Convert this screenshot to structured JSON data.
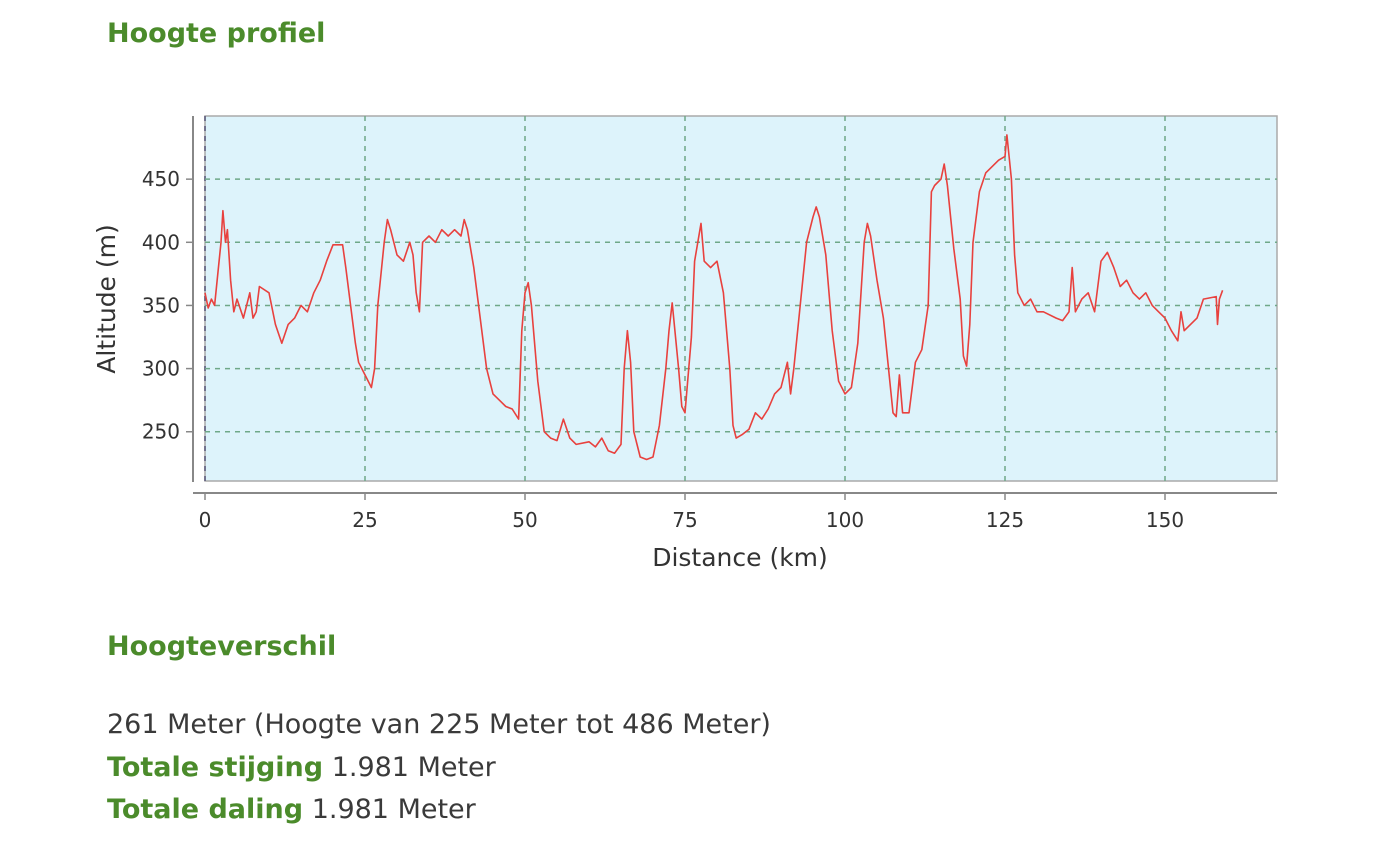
{
  "section_title": "Hoogte profiel",
  "summary_title": "Hoogteverschil",
  "summary": {
    "range_text": "261 Meter (Hoogte van 225 Meter tot 486 Meter)",
    "ascent_label": "Totale stijging",
    "ascent_value": "1.981 Meter",
    "descent_label": "Totale daling",
    "descent_value": "1.981 Meter"
  },
  "chart_data": {
    "type": "line",
    "title": "",
    "xlabel": "Distance (km)",
    "ylabel": "Altitude (m)",
    "xlim": [
      0,
      167.5
    ],
    "ylim": [
      211,
      500
    ],
    "xticks": [
      0,
      25,
      50,
      75,
      100,
      125,
      150
    ],
    "yticks": [
      250,
      300,
      350,
      400,
      450
    ],
    "grid": true,
    "colors": {
      "line": "#e8413e",
      "plot_bg": "#ddf3fb",
      "grid": "#6fa888"
    },
    "x": [
      0,
      0.5,
      1,
      1.5,
      2.5,
      2.8,
      3.2,
      3.5,
      4,
      4.5,
      5,
      6,
      7,
      7.5,
      8,
      8.5,
      10,
      11,
      12,
      13,
      14,
      15,
      16,
      17,
      18,
      19,
      20,
      21.5,
      22,
      23,
      23.5,
      24,
      25,
      26,
      26.5,
      27,
      28,
      28.5,
      29,
      30,
      31,
      32,
      32.5,
      33,
      33.5,
      34,
      35,
      36,
      37,
      38,
      39,
      40,
      40.5,
      41,
      42,
      43,
      44,
      45,
      46,
      47,
      48,
      49,
      49.5,
      50,
      50.5,
      51,
      52,
      53,
      54,
      55,
      56,
      57,
      58,
      60,
      61,
      62,
      63,
      64,
      65,
      65.5,
      66,
      66.5,
      67,
      68,
      69,
      70,
      71,
      72,
      72.5,
      73,
      74,
      74.5,
      75,
      76,
      76.5,
      77.5,
      78,
      79,
      80,
      81,
      82,
      82.5,
      83,
      84,
      85,
      86,
      87,
      88,
      89,
      90,
      91,
      91.5,
      92,
      93,
      94,
      95,
      95.5,
      96,
      97,
      98,
      99,
      100,
      101,
      102,
      103,
      103.5,
      104,
      105,
      106,
      107,
      107.5,
      108,
      108.5,
      109,
      110,
      111,
      112,
      113,
      113.5,
      114,
      115,
      115.5,
      116,
      117,
      118,
      118.5,
      119,
      119.5,
      120,
      121,
      122,
      124,
      125,
      125.3,
      126,
      126.5,
      127,
      128,
      129,
      130,
      131,
      133,
      134,
      135,
      135.5,
      136,
      137,
      138,
      139,
      140,
      141,
      142,
      143,
      144,
      145,
      146,
      147,
      148,
      149,
      150,
      151,
      152,
      152.5,
      153,
      155,
      156,
      158,
      158.2,
      158.5,
      159
    ],
    "y": [
      360,
      348,
      355,
      350,
      400,
      425,
      400,
      410,
      370,
      345,
      355,
      340,
      360,
      340,
      345,
      365,
      360,
      335,
      320,
      335,
      340,
      350,
      345,
      360,
      370,
      385,
      398,
      398,
      380,
      340,
      320,
      305,
      295,
      285,
      300,
      350,
      400,
      418,
      410,
      390,
      385,
      400,
      390,
      360,
      345,
      400,
      405,
      400,
      410,
      405,
      410,
      405,
      418,
      410,
      380,
      340,
      300,
      280,
      275,
      270,
      268,
      260,
      330,
      360,
      368,
      350,
      290,
      250,
      245,
      243,
      260,
      245,
      240,
      242,
      238,
      245,
      235,
      233,
      240,
      300,
      330,
      305,
      250,
      230,
      228,
      230,
      255,
      300,
      330,
      352,
      300,
      270,
      265,
      325,
      385,
      415,
      385,
      380,
      385,
      360,
      300,
      255,
      245,
      248,
      252,
      265,
      260,
      268,
      280,
      285,
      305,
      280,
      300,
      350,
      400,
      420,
      428,
      420,
      390,
      330,
      290,
      280,
      285,
      320,
      400,
      415,
      405,
      370,
      340,
      290,
      265,
      262,
      295,
      265,
      265,
      305,
      315,
      350,
      440,
      445,
      450,
      462,
      445,
      395,
      355,
      310,
      302,
      335,
      400,
      440,
      455,
      465,
      468,
      485,
      450,
      390,
      360,
      350,
      355,
      345,
      345,
      340,
      338,
      345,
      380,
      345,
      355,
      360,
      345,
      385,
      392,
      380,
      365,
      370,
      360,
      355,
      360,
      350,
      345,
      340,
      330,
      322,
      345,
      330,
      340,
      355,
      357,
      335,
      355,
      362
    ]
  }
}
